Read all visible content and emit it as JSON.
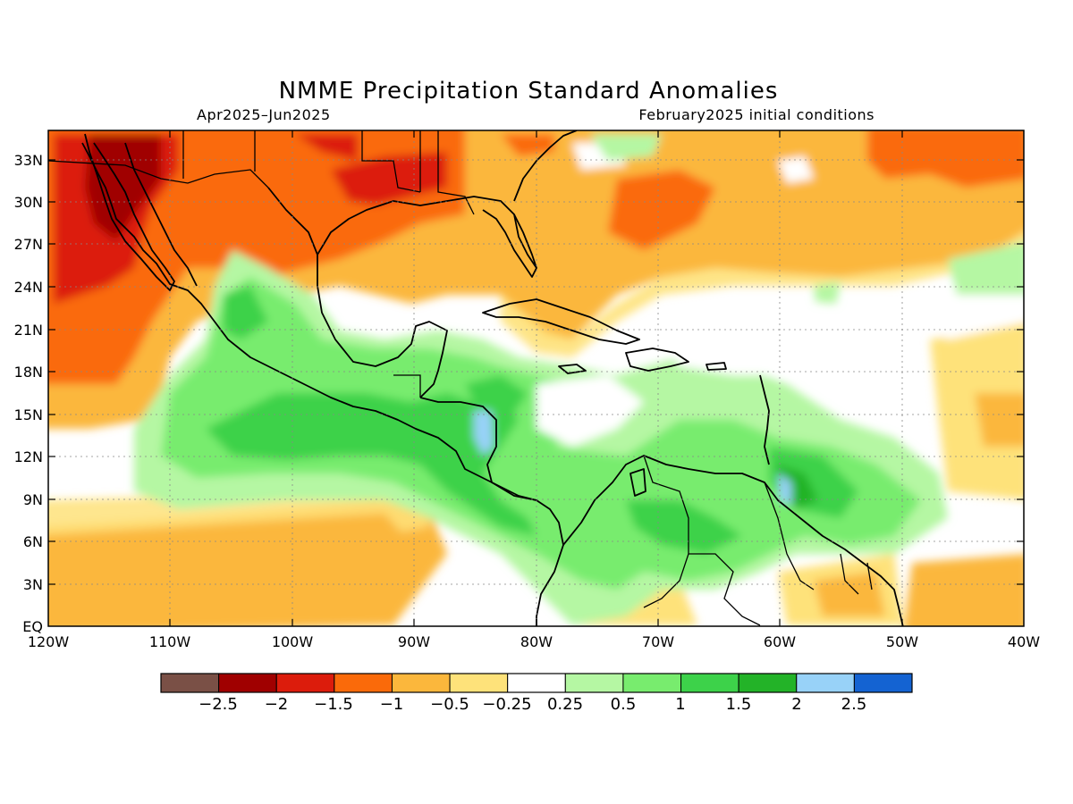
{
  "title": "NMME Precipitation Standard Anomalies",
  "subtitle_left": "Apr2025–Jun2025",
  "subtitle_right": "February2025 initial conditions",
  "lat_labels": [
    "33N",
    "30N",
    "27N",
    "24N",
    "21N",
    "18N",
    "15N",
    "12N",
    "9N",
    "6N",
    "3N",
    "EQ"
  ],
  "lon_labels": [
    "120W",
    "110W",
    "100W",
    "90W",
    "80W",
    "70W",
    "60W",
    "50W",
    "40W"
  ],
  "colorbar": {
    "labels": [
      "−2.5",
      "−2",
      "−1.5",
      "−1",
      "−0.5",
      "−0.25",
      "0.25",
      "0.5",
      "1",
      "1.5",
      "2",
      "2.5"
    ],
    "colors": [
      "#7a5046",
      "#a00000",
      "#dc1c0c",
      "#fa6a0a",
      "#fbb73c",
      "#fee27a",
      "#ffffff",
      "#b5f7a3",
      "#78ec6e",
      "#3dd24a",
      "#23b328",
      "#98d2f8",
      "#1463d2"
    ]
  },
  "map_region": "Central America, Caribbean and northern South America; 120W–40W, EQ–35N"
}
